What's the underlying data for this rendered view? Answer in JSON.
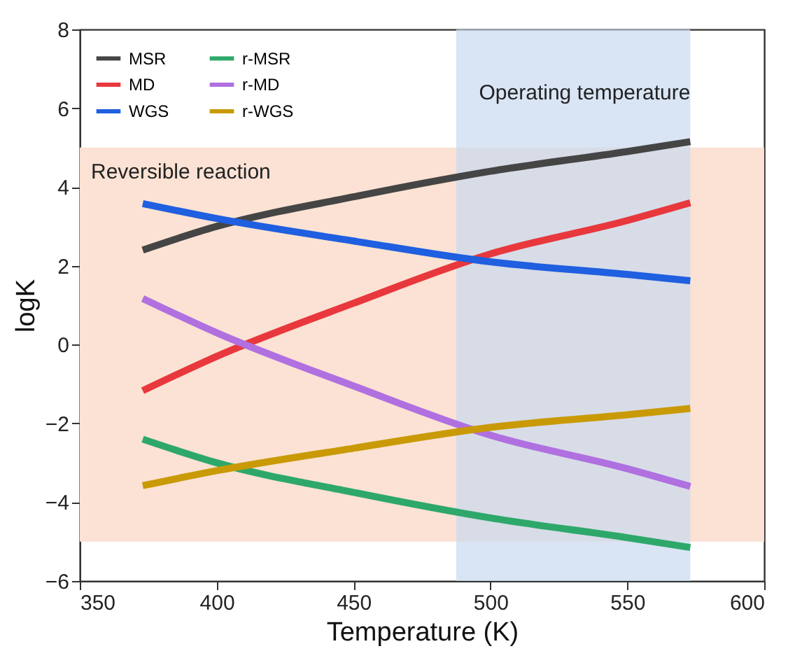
{
  "chart_data": {
    "type": "line",
    "xlabel": "Temperature (K)",
    "ylabel": "logK",
    "x": [
      373,
      400,
      450,
      500,
      550,
      573
    ],
    "series": [
      {
        "name": "MSR",
        "color": "#454545",
        "values": [
          2.4,
          3.0,
          3.75,
          4.4,
          4.9,
          5.15
        ]
      },
      {
        "name": "MD",
        "color": "#e8383d",
        "values": [
          -1.17,
          -0.3,
          1.05,
          2.3,
          3.15,
          3.6
        ]
      },
      {
        "name": "WGS",
        "color": "#1f5fe0",
        "values": [
          3.58,
          3.2,
          2.63,
          2.1,
          1.78,
          1.62
        ]
      },
      {
        "name": "r-MSR",
        "color": "#2ea86a",
        "values": [
          -2.4,
          -3.0,
          -3.75,
          -4.4,
          -4.9,
          -5.15
        ]
      },
      {
        "name": "r-MD",
        "color": "#b070e0",
        "values": [
          1.17,
          0.3,
          -1.05,
          -2.3,
          -3.15,
          -3.6
        ]
      },
      {
        "name": "r-WGS",
        "color": "#c99a06",
        "values": [
          -3.58,
          -3.2,
          -2.63,
          -2.1,
          -1.78,
          -1.62
        ]
      }
    ],
    "bands": [
      {
        "axis": "y",
        "from": -5,
        "to": 5,
        "label": "Reversible reaction",
        "color": "#fbe2d4"
      },
      {
        "axis": "x",
        "from": 487.5,
        "to": 573,
        "label": "Operating temperature",
        "color": "#c9daf0"
      }
    ],
    "xlim": [
      350,
      600
    ],
    "xticks": [
      350,
      400,
      450,
      500,
      550,
      600
    ],
    "ylim": [
      -6,
      8
    ],
    "yticks": [
      -6,
      -4,
      -2,
      0,
      2,
      4,
      6,
      8
    ],
    "grid": false,
    "legend": "top left",
    "marker": "none",
    "line_style": "solid"
  }
}
